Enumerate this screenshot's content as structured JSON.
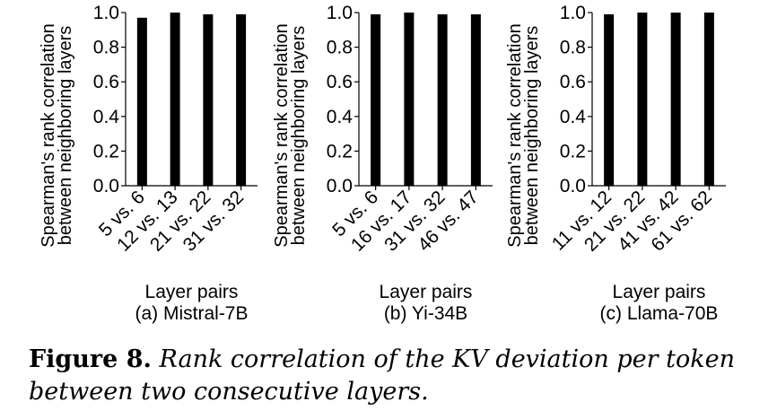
{
  "figure": {
    "label": "Figure 8.",
    "caption": "Rank correlation of the KV deviation per token between two consecutive layers."
  },
  "chart_data": [
    {
      "type": "bar",
      "subtitle": "(a) Mistral-7B",
      "xlabel": "Layer pairs",
      "ylabel": [
        "Spearman's rank correlation",
        "between neighboring layers"
      ],
      "ylim": [
        0,
        1.0
      ],
      "yticks": [
        "0.0",
        "0.2",
        "0.4",
        "0.6",
        "0.8",
        "1.0"
      ],
      "categories": [
        "5 vs. 6",
        "12 vs. 13",
        "21 vs. 22",
        "31 vs. 32"
      ],
      "values": [
        0.97,
        1.0,
        0.99,
        0.99
      ],
      "grid": false,
      "bar_color": "#000000"
    },
    {
      "type": "bar",
      "subtitle": "(b) Yi-34B",
      "xlabel": "Layer pairs",
      "ylabel": [
        "Spearman's rank correlation",
        "between neighboring layers"
      ],
      "ylim": [
        0,
        1.0
      ],
      "yticks": [
        "0.0",
        "0.2",
        "0.4",
        "0.6",
        "0.8",
        "1.0"
      ],
      "categories": [
        "5 vs. 6",
        "16 vs. 17",
        "31 vs. 32",
        "46 vs. 47"
      ],
      "values": [
        0.99,
        1.0,
        0.99,
        0.99
      ],
      "grid": false,
      "bar_color": "#000000"
    },
    {
      "type": "bar",
      "subtitle": "(c) Llama-70B",
      "xlabel": "Layer pairs",
      "ylabel": [
        "Spearman's rank correlation",
        "between neighboring layers"
      ],
      "ylim": [
        0,
        1.0
      ],
      "yticks": [
        "0.0",
        "0.2",
        "0.4",
        "0.6",
        "0.8",
        "1.0"
      ],
      "categories": [
        "11 vs. 12",
        "21 vs. 22",
        "41 vs. 42",
        "61 vs. 62"
      ],
      "values": [
        0.99,
        1.0,
        1.0,
        1.0
      ],
      "grid": false,
      "bar_color": "#000000"
    }
  ]
}
